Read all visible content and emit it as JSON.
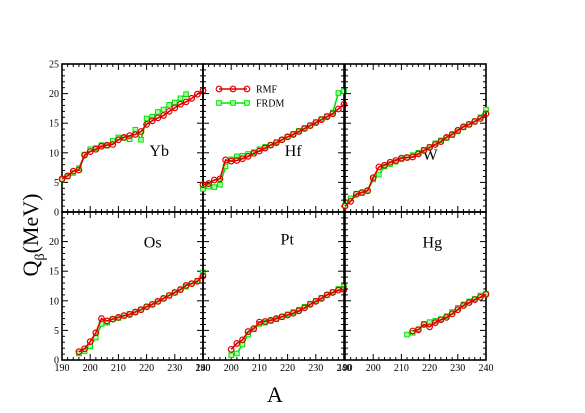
{
  "chart_data": {
    "type": "line",
    "layout": "2x3 panels, shared axes",
    "xlabel": "A",
    "ylabel_main": "Q",
    "ylabel_sub": "β",
    "ylabel_unit": "(MeV)",
    "xlim": [
      190,
      240
    ],
    "ylim": [
      0,
      25
    ],
    "xticks": [
      190,
      200,
      210,
      220,
      230,
      240
    ],
    "yticks": [
      0,
      5,
      10,
      15,
      20,
      25
    ],
    "yticks_lower": [
      0,
      5,
      10,
      15,
      20
    ],
    "x_tick_labels": [
      "190",
      "200",
      "210",
      "220",
      "230",
      "240"
    ],
    "y_tick_labels": [
      "0",
      "5",
      "10",
      "15",
      "20",
      "25"
    ],
    "y_tick_labels_lower": [
      "0",
      "5",
      "10",
      "15",
      "20"
    ],
    "legend": {
      "placement": "top-right of Yb panel / top-left of Hf panel",
      "entries": [
        {
          "label": "RMF",
          "color": "#e00000",
          "marker": "open-circle"
        },
        {
          "label": "FRDM",
          "color": "#00e000",
          "marker": "square"
        }
      ]
    },
    "panels": [
      {
        "element": "Yb",
        "row": 0,
        "col": 0,
        "series": [
          {
            "name": "RMF",
            "x": [
              190,
              192,
              194,
              196,
              198,
              200,
              202,
              204,
              206,
              208,
              210,
              212,
              214,
              216,
              218,
              220,
              222,
              224,
              226,
              228,
              230,
              232,
              234,
              236,
              238,
              240
            ],
            "y": [
              5.6,
              6.1,
              6.9,
              7.1,
              9.6,
              10.2,
              10.6,
              11.1,
              11.3,
              11.4,
              12.2,
              12.6,
              12.9,
              13.1,
              13.6,
              14.8,
              15.4,
              15.9,
              16.3,
              17.0,
              17.6,
              18.2,
              18.6,
              19.2,
              19.9,
              20.5
            ]
          },
          {
            "name": "FRDM",
            "x": [
              190,
              192,
              194,
              196,
              198,
              200,
              202,
              204,
              206,
              208,
              210,
              212,
              214,
              216,
              218,
              220,
              222,
              224,
              226,
              228,
              230,
              232,
              234
            ],
            "y": [
              5.5,
              6.0,
              6.6,
              7.4,
              9.7,
              10.6,
              10.8,
              11.3,
              11.2,
              12.0,
              12.6,
              12.5,
              12.3,
              13.9,
              12.2,
              15.8,
              16.1,
              16.9,
              17.3,
              18.1,
              18.5,
              19.2,
              19.9
            ]
          }
        ]
      },
      {
        "element": "Hf",
        "row": 0,
        "col": 1,
        "series": [
          {
            "name": "RMF",
            "x": [
              190,
              192,
              194,
              196,
              198,
              200,
              202,
              204,
              206,
              208,
              210,
              212,
              214,
              216,
              218,
              220,
              222,
              224,
              226,
              228,
              230,
              232,
              234,
              236,
              238,
              240
            ],
            "y": [
              4.6,
              4.8,
              5.4,
              5.6,
              8.8,
              8.6,
              8.7,
              9.0,
              9.4,
              9.9,
              10.3,
              10.8,
              11.3,
              11.7,
              12.2,
              12.7,
              13.1,
              13.6,
              14.1,
              14.6,
              15.1,
              15.6,
              16.1,
              16.6,
              17.4,
              18.2
            ]
          },
          {
            "name": "FRDM",
            "x": [
              190,
              192,
              194,
              196,
              198,
              200,
              202,
              204,
              206,
              208,
              210,
              212,
              214,
              216,
              218,
              220,
              222,
              224,
              226,
              228,
              230,
              232,
              234,
              236,
              238,
              240
            ],
            "y": [
              3.9,
              4.3,
              4.2,
              4.6,
              7.7,
              8.9,
              9.4,
              9.5,
              9.8,
              10.1,
              10.6,
              11.0,
              11.3,
              11.8,
              12.2,
              12.7,
              13.2,
              13.7,
              14.2,
              14.6,
              15.2,
              15.7,
              16.2,
              16.8,
              20.1,
              20.4
            ]
          }
        ]
      },
      {
        "element": "W",
        "row": 0,
        "col": 2,
        "series": [
          {
            "name": "RMF",
            "x": [
              190,
              192,
              194,
              196,
              198,
              200,
              202,
              204,
              206,
              208,
              210,
              212,
              214,
              216,
              218,
              220,
              222,
              224,
              226,
              228,
              230,
              232,
              234,
              236,
              238,
              240
            ],
            "y": [
              1.0,
              1.8,
              3.0,
              3.3,
              3.6,
              5.8,
              7.6,
              7.9,
              8.4,
              8.7,
              9.1,
              9.2,
              9.3,
              9.8,
              10.4,
              10.9,
              11.4,
              11.9,
              12.6,
              13.1,
              13.8,
              14.4,
              14.8,
              15.3,
              15.8,
              16.6
            ]
          },
          {
            "name": "FRDM",
            "x": [
              190,
              192,
              194,
              196,
              198,
              200,
              202,
              204,
              206,
              208,
              210,
              212,
              214,
              216,
              218,
              220,
              222,
              224,
              226,
              228,
              230,
              232,
              234,
              236,
              238,
              240
            ],
            "y": [
              1.1,
              2.3,
              3.1,
              3.2,
              3.6,
              5.5,
              6.3,
              7.7,
              8.1,
              8.5,
              8.9,
              9.2,
              9.6,
              10.0,
              10.5,
              11.0,
              11.6,
              12.1,
              12.5,
              13.0,
              13.6,
              14.3,
              14.8,
              15.3,
              16.0,
              17.3
            ]
          }
        ]
      },
      {
        "element": "Os",
        "row": 1,
        "col": 0,
        "series": [
          {
            "name": "RMF",
            "x": [
              196,
              198,
              200,
              202,
              204,
              206,
              208,
              210,
              212,
              214,
              216,
              218,
              220,
              222,
              224,
              226,
              228,
              230,
              232,
              234,
              236,
              238,
              240
            ],
            "y": [
              1.4,
              1.9,
              3.1,
              4.6,
              7.0,
              6.6,
              6.9,
              7.2,
              7.5,
              7.7,
              8.1,
              8.5,
              9.0,
              9.4,
              9.9,
              10.4,
              10.9,
              11.4,
              11.9,
              12.6,
              12.9,
              13.3,
              14.2
            ]
          },
          {
            "name": "FRDM",
            "x": [
              196,
              198,
              200,
              202,
              204,
              206,
              208,
              210,
              212,
              214,
              216,
              218,
              220,
              222,
              224,
              226,
              228,
              230,
              232,
              234,
              236,
              238,
              240
            ],
            "y": [
              1.1,
              1.5,
              2.3,
              3.8,
              6.1,
              6.3,
              6.9,
              7.1,
              7.5,
              7.8,
              8.1,
              8.5,
              9.0,
              9.4,
              9.9,
              10.4,
              10.9,
              11.4,
              11.9,
              12.4,
              12.9,
              13.4,
              14.8
            ]
          }
        ]
      },
      {
        "element": "Pt",
        "row": 1,
        "col": 1,
        "series": [
          {
            "name": "RMF",
            "x": [
              200,
              202,
              204,
              206,
              208,
              210,
              212,
              214,
              216,
              218,
              220,
              222,
              224,
              226,
              228,
              230,
              232,
              234,
              236,
              238,
              240
            ],
            "y": [
              1.8,
              2.8,
              3.4,
              4.8,
              5.3,
              6.4,
              6.5,
              6.7,
              7.0,
              7.3,
              7.6,
              7.9,
              8.3,
              8.8,
              9.4,
              9.9,
              10.4,
              11.0,
              11.4,
              11.8,
              11.9
            ]
          },
          {
            "name": "FRDM",
            "x": [
              200,
              202,
              204,
              206,
              208,
              210,
              212,
              214,
              216,
              218,
              220,
              222,
              224,
              226,
              228,
              230,
              232,
              234,
              236,
              238,
              240
            ],
            "y": [
              0.8,
              1.1,
              2.6,
              4.3,
              5.2,
              6.1,
              6.3,
              6.6,
              6.9,
              7.3,
              7.7,
              8.1,
              8.5,
              9.0,
              9.5,
              10.0,
              10.5,
              11.0,
              11.5,
              12.0,
              12.4
            ]
          }
        ]
      },
      {
        "element": "Hg",
        "row": 1,
        "col": 2,
        "series": [
          {
            "name": "RMF",
            "x": [
              214,
              216,
              218,
              220,
              222,
              224,
              226,
              228,
              230,
              232,
              234,
              236,
              238,
              240
            ],
            "y": [
              4.9,
              5.1,
              6.0,
              5.6,
              6.3,
              6.8,
              7.2,
              7.8,
              8.5,
              9.2,
              9.7,
              10.2,
              10.6,
              11.1
            ]
          },
          {
            "name": "FRDM",
            "x": [
              212,
              214,
              216,
              218,
              220,
              222,
              224,
              226,
              228,
              230,
              232,
              234,
              236,
              238,
              240
            ],
            "y": [
              4.3,
              4.6,
              5.2,
              6.1,
              6.4,
              6.6,
              6.9,
              7.4,
              8.1,
              8.8,
              9.4,
              9.9,
              10.3,
              10.9,
              11.2
            ]
          }
        ]
      }
    ]
  }
}
